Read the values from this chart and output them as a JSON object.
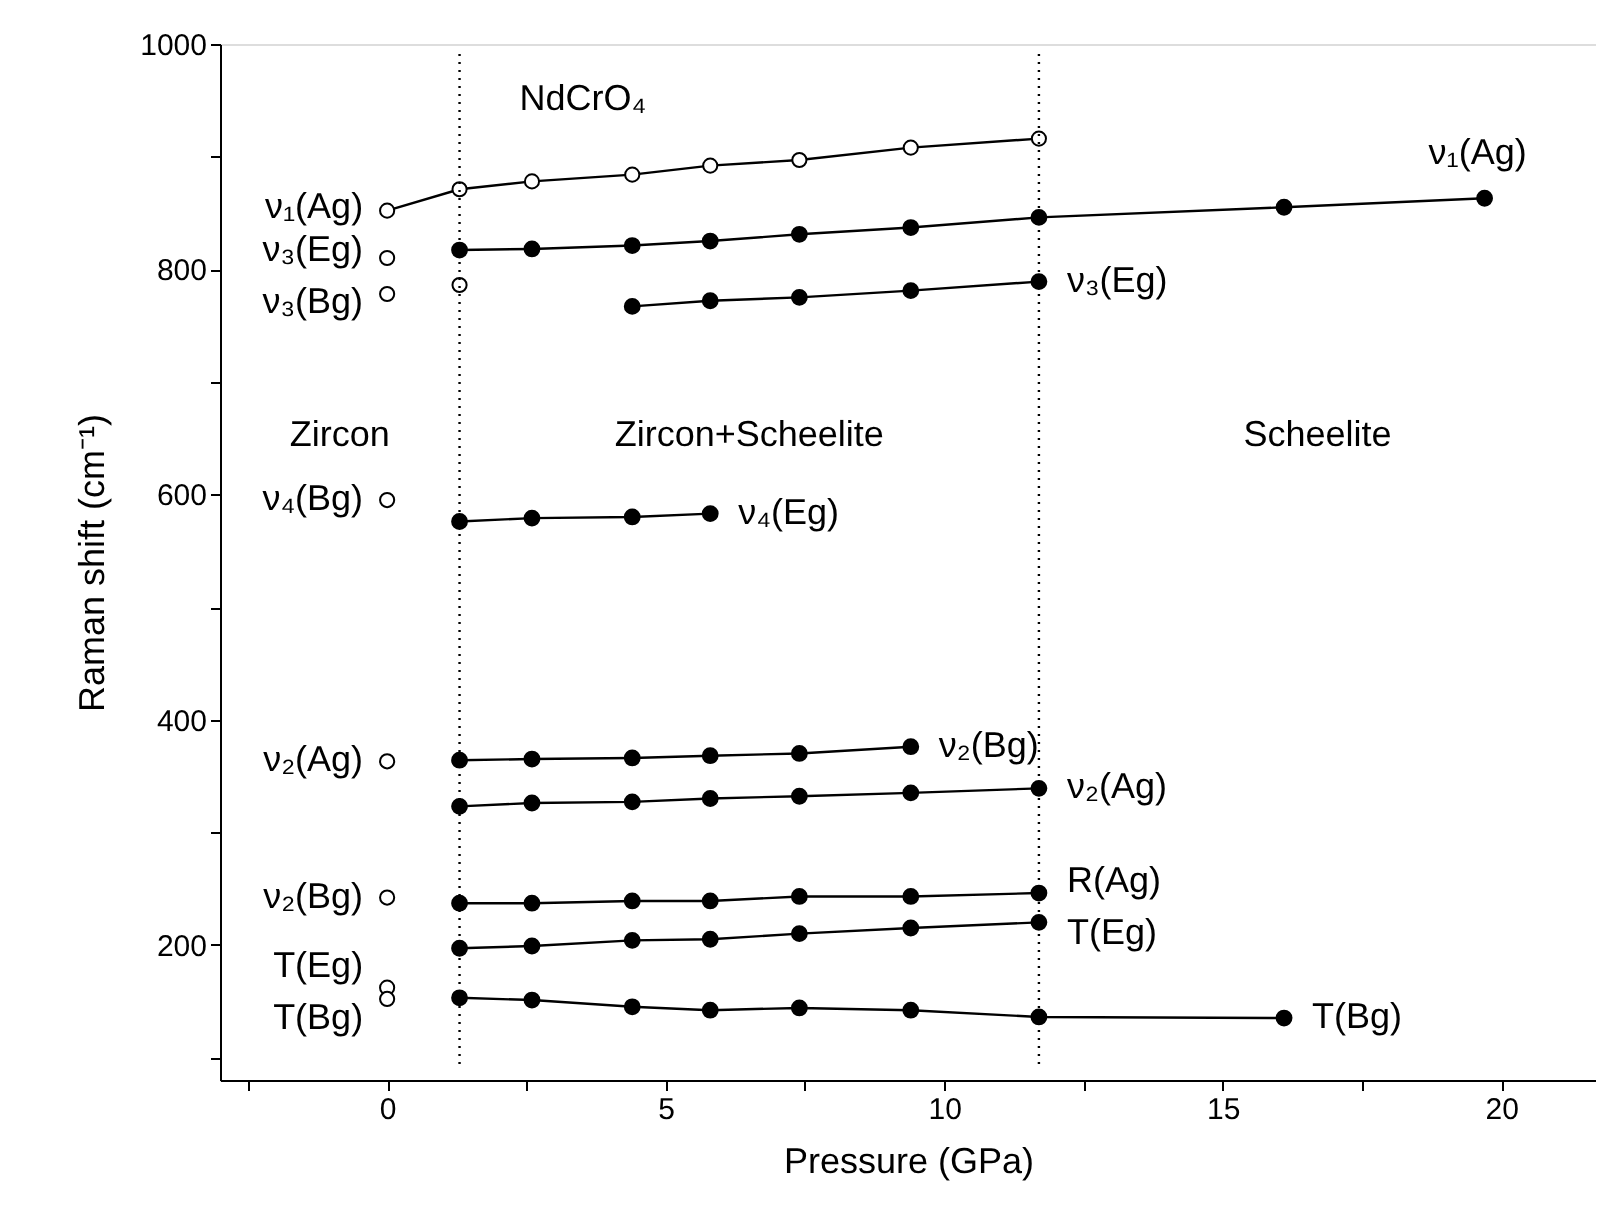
{
  "chart_data": {
    "type": "line",
    "xlabel": "Pressure (GPa)",
    "ylabel": "Raman shift (cm⁻¹)",
    "xlim": [
      -3,
      21.7
    ],
    "ylim": [
      80,
      1000
    ],
    "xticks": [
      {
        "value": -2.5,
        "label": null
      },
      0,
      {
        "value": 2.5,
        "label": null
      },
      5,
      {
        "value": 7.5,
        "label": null
      },
      10,
      {
        "value": 12.5,
        "label": null
      },
      15,
      {
        "value": 17.5,
        "label": null
      },
      20
    ],
    "yticks": [
      {
        "value": 100,
        "label": null
      },
      200,
      {
        "value": 300,
        "label": null
      },
      400,
      {
        "value": 500,
        "label": null
      },
      600,
      {
        "value": 700,
        "label": null
      },
      800,
      {
        "value": 900,
        "label": null
      },
      1000
    ],
    "grid": false,
    "legend": false,
    "line_style": "solid",
    "series": [
      {
        "type": "line",
        "name": "ν₁(Ag)",
        "marker": "circle-open",
        "color": "#000000",
        "x": [
          0,
          1.3,
          2.6,
          4.4,
          5.8,
          7.4,
          9.4,
          11.7
        ],
        "values": [
          852,
          871,
          878,
          884,
          892,
          897,
          908,
          916
        ]
      },
      {
        "type": "scatter",
        "name": "ν₃(Eg)",
        "marker": "circle-open",
        "color": "#000000",
        "x": [
          0
        ],
        "values": [
          810
        ]
      },
      {
        "type": "scatter",
        "name": "ν₃(Bg)",
        "marker": "circle-open",
        "color": "#000000",
        "x": [
          0
        ],
        "values": [
          778
        ]
      },
      {
        "type": "scatter",
        "marker": "circle-open",
        "color": "#000000",
        "x": [
          1.3
        ],
        "values": [
          786
        ]
      },
      {
        "type": "scatter",
        "name": "ν₄(Bg)",
        "marker": "circle-open",
        "color": "#000000",
        "x": [
          0
        ],
        "values": [
          595
        ]
      },
      {
        "type": "scatter",
        "name": "ν₂(Ag)",
        "marker": "circle-open",
        "color": "#000000",
        "x": [
          0
        ],
        "values": [
          363
        ]
      },
      {
        "type": "scatter",
        "name": "ν₂(Bg)",
        "marker": "circle-open",
        "color": "#000000",
        "x": [
          0
        ],
        "values": [
          242
        ]
      },
      {
        "type": "scatter",
        "name": "T(Eg)",
        "marker": "circle-open",
        "color": "#000000",
        "x": [
          0
        ],
        "values": [
          162
        ]
      },
      {
        "type": "scatter",
        "name": "T(Bg)",
        "marker": "circle-open",
        "color": "#000000",
        "x": [
          0
        ],
        "values": [
          152
        ]
      },
      {
        "name": "ν₁(Ag)",
        "marker": "circle",
        "color": "#000000",
        "x": [
          1.3,
          2.6,
          4.4,
          5.8,
          7.4,
          9.4,
          11.7,
          16.1,
          19.7
        ],
        "values": [
          817,
          818,
          821,
          825,
          831,
          837,
          846,
          855,
          863
        ]
      },
      {
        "name": "ν₃(Eg)",
        "marker": "circle",
        "color": "#000000",
        "x": [
          4.4,
          5.8,
          7.4,
          9.4,
          11.7
        ],
        "values": [
          767,
          772,
          775,
          781,
          789
        ]
      },
      {
        "name": "ν₄(Eg)",
        "marker": "circle",
        "color": "#000000",
        "x": [
          1.3,
          2.6,
          4.4,
          5.8
        ],
        "values": [
          576,
          579,
          580,
          583
        ]
      },
      {
        "name": "ν₂(Bg)",
        "marker": "circle",
        "color": "#000000",
        "x": [
          1.3,
          2.6,
          4.4,
          5.8,
          7.4,
          9.4
        ],
        "values": [
          364,
          365,
          366,
          368,
          370,
          376
        ]
      },
      {
        "name": "ν₂(Ag)",
        "marker": "circle",
        "color": "#000000",
        "x": [
          1.3,
          2.6,
          4.4,
          5.8,
          7.4,
          9.4,
          11.7
        ],
        "values": [
          323,
          326,
          327,
          330,
          332,
          335,
          339
        ]
      },
      {
        "name": "R(Ag)",
        "marker": "circle",
        "color": "#000000",
        "x": [
          1.3,
          2.6,
          4.4,
          5.8,
          7.4,
          9.4,
          11.7
        ],
        "values": [
          237,
          237,
          239,
          239,
          243,
          243,
          246
        ]
      },
      {
        "name": "T(Eg)",
        "marker": "circle",
        "color": "#000000",
        "x": [
          1.3,
          2.6,
          4.4,
          5.8,
          7.4,
          9.4,
          11.7
        ],
        "values": [
          197,
          199,
          204,
          205,
          210,
          215,
          220
        ]
      },
      {
        "name": "T(Bg)",
        "marker": "circle",
        "color": "#000000",
        "x": [
          1.3,
          2.6,
          4.4,
          5.8,
          7.4,
          9.4,
          11.7,
          16.1
        ],
        "values": [
          153,
          151,
          145,
          142,
          144,
          142,
          136,
          135
        ]
      }
    ],
    "ref_lines": [
      {
        "axis": "x",
        "value": 1.3,
        "color": "#000000",
        "line_style": "dotted"
      },
      {
        "axis": "x",
        "value": 11.7,
        "color": "#000000",
        "line_style": "dotted"
      }
    ],
    "annotations": [
      "NdCrO₄",
      "Zircon",
      "Zircon+Scheelite",
      "Scheelite"
    ]
  }
}
